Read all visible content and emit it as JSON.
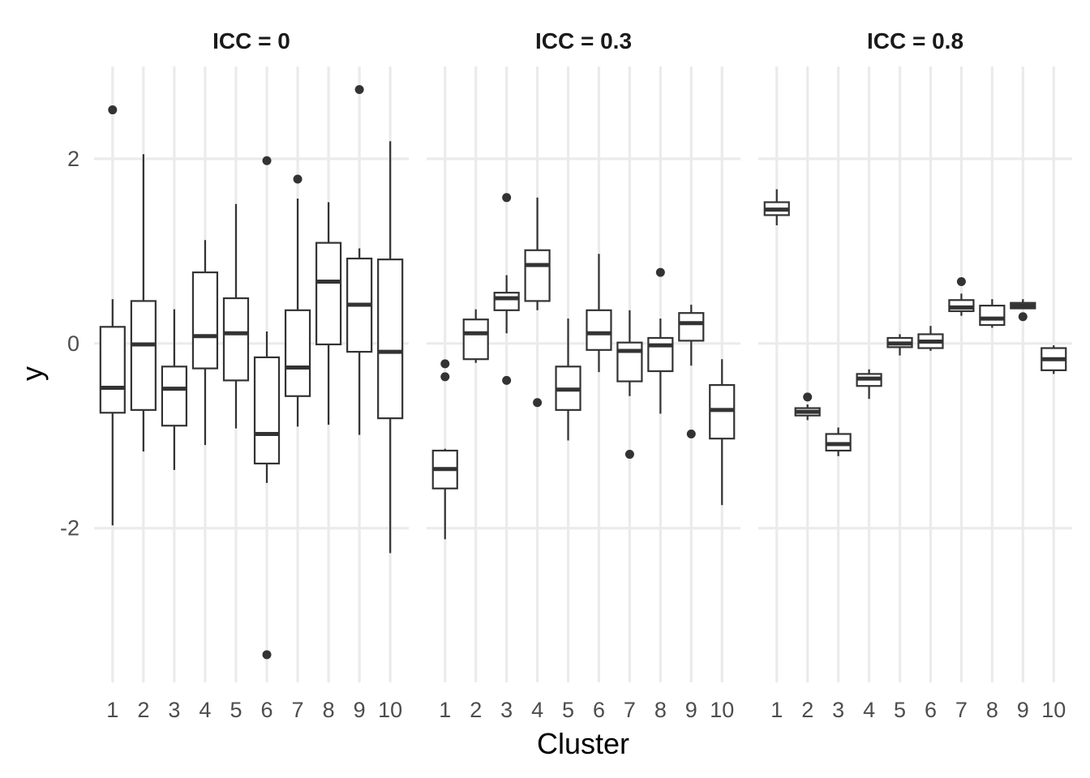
{
  "chart_data": {
    "type": "boxplot",
    "xlabel": "Cluster",
    "ylabel": "y",
    "ylim": [
      -3.67,
      3.0
    ],
    "y_breaks": [
      -2,
      0,
      2
    ],
    "y_tick_labels": [
      "-2",
      "0",
      "2"
    ],
    "categories": [
      "1",
      "2",
      "3",
      "4",
      "5",
      "6",
      "7",
      "8",
      "9",
      "10"
    ],
    "grid": true,
    "colors": {
      "box_outline": "#333333",
      "box_fill": "#ffffff",
      "grid": "#ebebeb",
      "tick_text": "#4d4d4d"
    },
    "facets": [
      {
        "title": "ICC = 0",
        "boxes": [
          {
            "cluster": "1",
            "lower": -1.97,
            "q1": -0.75,
            "median": -0.48,
            "q3": 0.18,
            "upper": 0.48,
            "outliers": [
              2.53
            ]
          },
          {
            "cluster": "2",
            "lower": -1.17,
            "q1": -0.72,
            "median": -0.01,
            "q3": 0.46,
            "upper": 2.05,
            "outliers": []
          },
          {
            "cluster": "3",
            "lower": -1.37,
            "q1": -0.89,
            "median": -0.49,
            "q3": -0.25,
            "upper": 0.37,
            "outliers": []
          },
          {
            "cluster": "4",
            "lower": -1.1,
            "q1": -0.27,
            "median": 0.08,
            "q3": 0.77,
            "upper": 1.12,
            "outliers": []
          },
          {
            "cluster": "5",
            "lower": -0.92,
            "q1": -0.4,
            "median": 0.11,
            "q3": 0.49,
            "upper": 1.51,
            "outliers": []
          },
          {
            "cluster": "6",
            "lower": -1.51,
            "q1": -1.3,
            "median": -0.98,
            "q3": -0.15,
            "upper": 0.13,
            "outliers": [
              1.98,
              -3.37
            ]
          },
          {
            "cluster": "7",
            "lower": -0.9,
            "q1": -0.57,
            "median": -0.26,
            "q3": 0.36,
            "upper": 1.57,
            "outliers": [
              1.78
            ]
          },
          {
            "cluster": "8",
            "lower": -0.88,
            "q1": -0.01,
            "median": 0.67,
            "q3": 1.09,
            "upper": 1.53,
            "outliers": []
          },
          {
            "cluster": "9",
            "lower": -0.99,
            "q1": -0.09,
            "median": 0.42,
            "q3": 0.92,
            "upper": 1.03,
            "outliers": [
              2.75
            ]
          },
          {
            "cluster": "10",
            "lower": -2.27,
            "q1": -0.81,
            "median": -0.09,
            "q3": 0.91,
            "upper": 2.19,
            "outliers": []
          }
        ]
      },
      {
        "title": "ICC = 0.3",
        "boxes": [
          {
            "cluster": "1",
            "lower": -2.12,
            "q1": -1.57,
            "median": -1.36,
            "q3": -1.16,
            "upper": -1.14,
            "outliers": [
              -0.22,
              -0.36
            ]
          },
          {
            "cluster": "2",
            "lower": -0.21,
            "q1": -0.17,
            "median": 0.11,
            "q3": 0.26,
            "upper": 0.37,
            "outliers": []
          },
          {
            "cluster": "3",
            "lower": 0.11,
            "q1": 0.36,
            "median": 0.49,
            "q3": 0.55,
            "upper": 0.74,
            "outliers": [
              1.58,
              -0.4
            ]
          },
          {
            "cluster": "4",
            "lower": 0.36,
            "q1": 0.46,
            "median": 0.85,
            "q3": 1.01,
            "upper": 1.58,
            "outliers": [
              -0.64
            ]
          },
          {
            "cluster": "5",
            "lower": -1.05,
            "q1": -0.72,
            "median": -0.5,
            "q3": -0.25,
            "upper": 0.27,
            "outliers": []
          },
          {
            "cluster": "6",
            "lower": -0.31,
            "q1": -0.07,
            "median": 0.11,
            "q3": 0.36,
            "upper": 0.97,
            "outliers": []
          },
          {
            "cluster": "7",
            "lower": -0.57,
            "q1": -0.41,
            "median": -0.08,
            "q3": 0.01,
            "upper": 0.36,
            "outliers": [
              -1.2
            ]
          },
          {
            "cluster": "8",
            "lower": -0.76,
            "q1": -0.3,
            "median": -0.02,
            "q3": 0.06,
            "upper": 0.27,
            "outliers": [
              0.77
            ]
          },
          {
            "cluster": "9",
            "lower": -0.24,
            "q1": 0.03,
            "median": 0.22,
            "q3": 0.33,
            "upper": 0.42,
            "outliers": [
              -0.98
            ]
          },
          {
            "cluster": "10",
            "lower": -1.75,
            "q1": -1.03,
            "median": -0.72,
            "q3": -0.45,
            "upper": -0.17,
            "outliers": []
          }
        ]
      },
      {
        "title": "ICC = 0.8",
        "boxes": [
          {
            "cluster": "1",
            "lower": 1.28,
            "q1": 1.39,
            "median": 1.45,
            "q3": 1.53,
            "upper": 1.67,
            "outliers": []
          },
          {
            "cluster": "2",
            "lower": -0.83,
            "q1": -0.78,
            "median": -0.74,
            "q3": -0.7,
            "upper": -0.66,
            "outliers": [
              -0.58
            ]
          },
          {
            "cluster": "3",
            "lower": -1.22,
            "q1": -1.16,
            "median": -1.09,
            "q3": -0.98,
            "upper": -0.91,
            "outliers": []
          },
          {
            "cluster": "4",
            "lower": -0.6,
            "q1": -0.46,
            "median": -0.38,
            "q3": -0.33,
            "upper": -0.28,
            "outliers": []
          },
          {
            "cluster": "5",
            "lower": -0.13,
            "q1": -0.04,
            "median": 0.0,
            "q3": 0.06,
            "upper": 0.1,
            "outliers": []
          },
          {
            "cluster": "6",
            "lower": -0.08,
            "q1": -0.05,
            "median": 0.02,
            "q3": 0.1,
            "upper": 0.19,
            "outliers": []
          },
          {
            "cluster": "7",
            "lower": 0.3,
            "q1": 0.35,
            "median": 0.39,
            "q3": 0.47,
            "upper": 0.54,
            "outliers": [
              0.67
            ]
          },
          {
            "cluster": "8",
            "lower": 0.17,
            "q1": 0.2,
            "median": 0.27,
            "q3": 0.41,
            "upper": 0.48,
            "outliers": []
          },
          {
            "cluster": "9",
            "lower": 0.38,
            "q1": 0.38,
            "median": 0.41,
            "q3": 0.44,
            "upper": 0.48,
            "outliers": [
              0.29
            ]
          },
          {
            "cluster": "10",
            "lower": -0.33,
            "q1": -0.29,
            "median": -0.17,
            "q3": -0.05,
            "upper": -0.02,
            "outliers": []
          }
        ]
      }
    ]
  }
}
